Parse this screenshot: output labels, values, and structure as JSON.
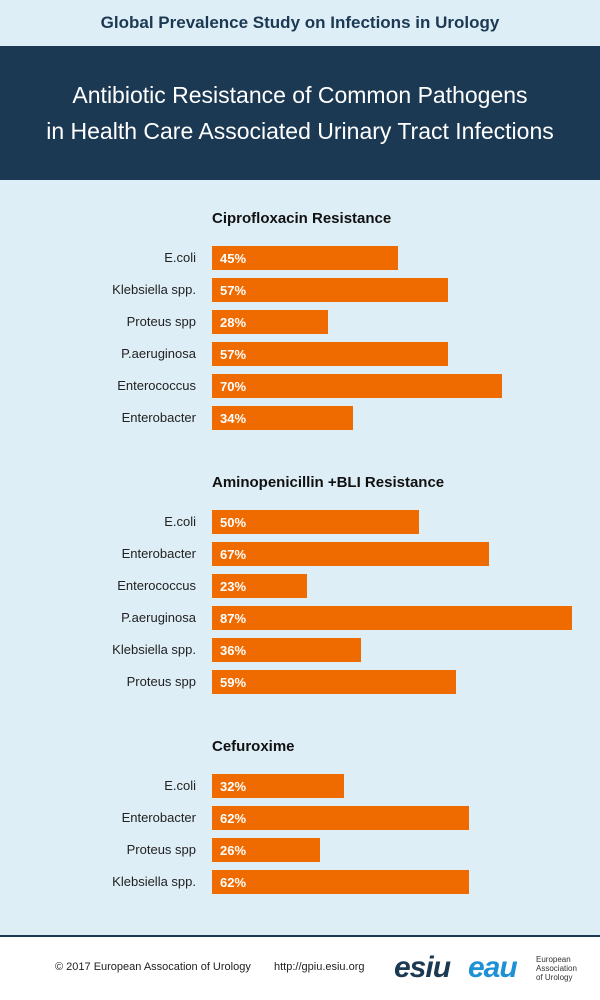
{
  "header": {
    "top_title": "Global Prevalence Study on Infections in Urology",
    "banner_line1": "Antibiotic Resistance of Common Pathogens",
    "banner_line2": "in Health Care Associated Urinary Tract Infections"
  },
  "chart_data": [
    {
      "type": "bar",
      "orientation": "horizontal",
      "title": "Ciprofloxacin Resistance",
      "categories": [
        "E.coli",
        "Klebsiella spp.",
        "Proteus spp",
        "P.aeruginosa",
        "Enterococcus",
        "Enterobacter"
      ],
      "values": [
        45,
        57,
        28,
        57,
        70,
        34
      ],
      "unit": "%",
      "xlim": [
        0,
        87
      ]
    },
    {
      "type": "bar",
      "orientation": "horizontal",
      "title": "Aminopenicillin +BLI Resistance",
      "categories": [
        "E.coli",
        "Enterobacter",
        "Enterococcus",
        "P.aeruginosa",
        "Klebsiella spp.",
        "Proteus spp"
      ],
      "values": [
        50,
        67,
        23,
        87,
        36,
        59
      ],
      "unit": "%",
      "xlim": [
        0,
        87
      ]
    },
    {
      "type": "bar",
      "orientation": "horizontal",
      "title": "Cefuroxime",
      "categories": [
        "E.coli",
        "Enterobacter",
        "Proteus spp",
        "Klebsiella spp."
      ],
      "values": [
        32,
        62,
        26,
        62
      ],
      "unit": "%",
      "xlim": [
        0,
        87
      ]
    }
  ],
  "colors": {
    "bar": "#ef6b00",
    "banner": "#1c3953",
    "background": "#deeef7"
  },
  "footer": {
    "copyright": "© 2017 European Assocation of Urology",
    "url": "http://gpiu.esiu.org",
    "logo_esiu": "esiu",
    "logo_eau": "eau",
    "eau_line1": "European",
    "eau_line2": "Association",
    "eau_line3": "of Urology"
  }
}
